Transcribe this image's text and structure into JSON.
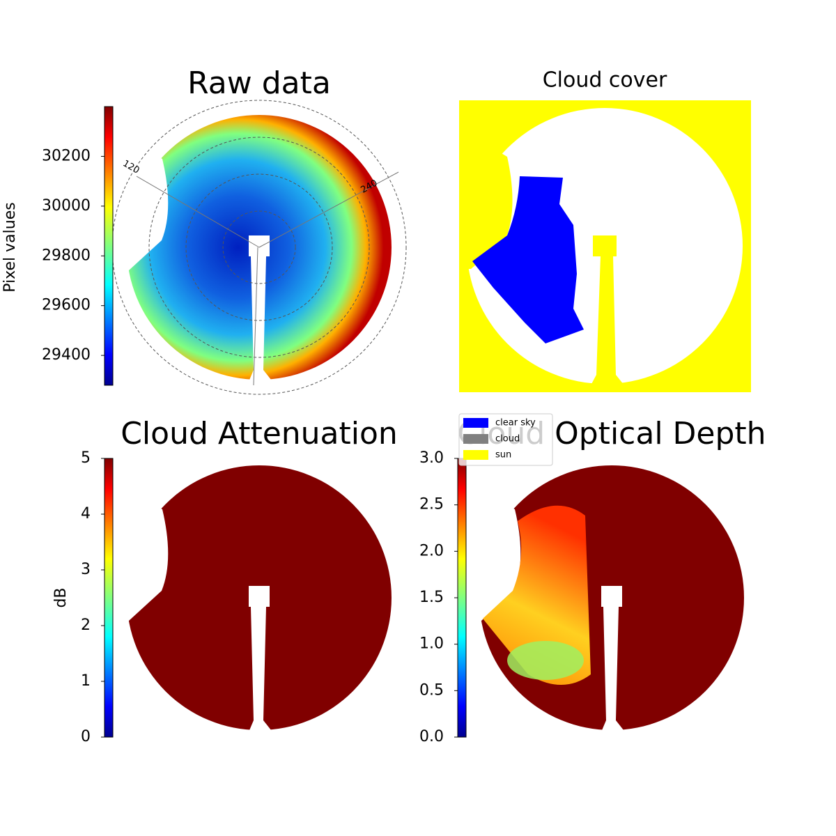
{
  "chart_data": [
    {
      "type": "image",
      "title": "Raw data",
      "ylabel": "Pixel values",
      "cmap": "jet",
      "ylim": [
        29280,
        30400
      ],
      "yticks": [
        29400,
        29600,
        29800,
        30000,
        30200
      ],
      "annotations": [
        "120",
        "240"
      ]
    },
    {
      "type": "classification",
      "title": "Cloud cover",
      "series": [
        {
          "name": "clear sky",
          "color": "#0000ff"
        },
        {
          "name": "cloud",
          "color": "#808080"
        },
        {
          "name": "sun",
          "color": "#ffff00"
        }
      ]
    },
    {
      "type": "image",
      "title": "Cloud Attenuation",
      "ylabel": "dB",
      "cmap": "jet",
      "ylim": [
        0,
        5
      ],
      "yticks": [
        0,
        1,
        2,
        3,
        4,
        5
      ]
    },
    {
      "type": "image",
      "title": "Cloud Optical Depth",
      "cmap": "jet",
      "ylim": [
        0,
        3
      ],
      "yticks": [
        {
          "value": 0,
          "label": "0.0"
        },
        0.5,
        {
          "value": 1,
          "label": "1.0"
        },
        1.5,
        {
          "value": 2,
          "label": "2.0"
        },
        2.5,
        {
          "value": 3,
          "label": "3.0"
        }
      ]
    }
  ]
}
